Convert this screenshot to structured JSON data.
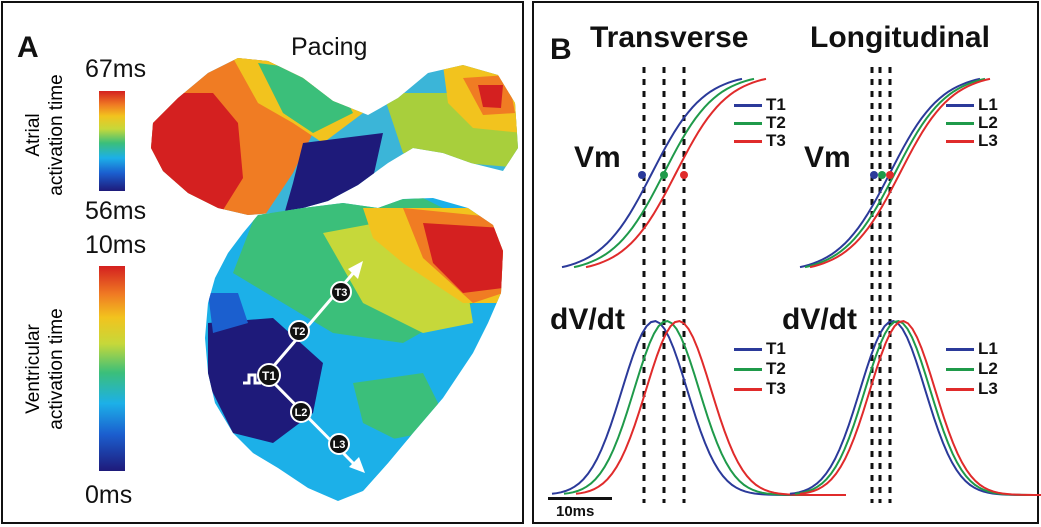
{
  "panel_a": {
    "letter": "A",
    "title": "Pacing",
    "atrial": {
      "label_line1": "Atrial",
      "label_line2": "activation time",
      "max": "67ms",
      "min": "56ms"
    },
    "ventricular": {
      "label_line1": "Ventricular",
      "label_line2": "activation time",
      "max": "10ms",
      "min": "0ms"
    },
    "sites": [
      "T1",
      "T2",
      "T3",
      "L2",
      "L3"
    ]
  },
  "panel_b": {
    "letter": "B",
    "transverse_title": "Transverse",
    "longitudinal_title": "Longitudinal",
    "vm_label": "Vm",
    "dvdt_label": "dV/dt",
    "legend_transverse": [
      "T1",
      "T2",
      "T3"
    ],
    "legend_longitudinal": [
      "L1",
      "L2",
      "L3"
    ],
    "scale_bar": "10ms"
  },
  "colors": {
    "trace_1": "#2b3a9a",
    "trace_2": "#1f9a4a",
    "trace_3": "#e02b2b"
  }
}
